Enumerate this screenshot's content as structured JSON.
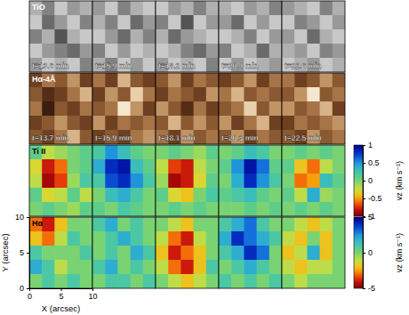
{
  "chart_data": {
    "type": "heatmap",
    "xlabel": "X (arcsec)",
    "ylabel": "Y (arcsec)",
    "xlim": [
      0,
      10
    ],
    "xticks": [
      0,
      5,
      10
    ],
    "ylim": [
      0,
      10
    ],
    "yticks": [
      0,
      5,
      10
    ],
    "rows": [
      {
        "label": "TiO",
        "color": "gray",
        "range": [
          0,
          1
        ],
        "times": [
          "t=13.6 min",
          "t=15.9 min",
          "t=18.2 min",
          "t=20.4 min",
          "t=22.6 min"
        ],
        "cells": [
          [
            [
              0.7,
              0.5,
              0.8,
              0.6,
              0.7
            ],
            [
              0.8,
              0.4,
              0.6,
              0.8,
              0.5
            ],
            [
              0.5,
              0.7,
              0.3,
              0.7,
              0.8
            ],
            [
              0.8,
              0.6,
              0.5,
              0.4,
              0.6
            ],
            [
              0.6,
              0.8,
              0.7,
              0.8,
              0.5
            ]
          ],
          [
            [
              0.6,
              0.8,
              0.5,
              0.7,
              0.8
            ],
            [
              0.7,
              0.5,
              0.8,
              0.4,
              0.6
            ],
            [
              0.8,
              0.6,
              0.4,
              0.7,
              0.5
            ],
            [
              0.5,
              0.8,
              0.6,
              0.8,
              0.7
            ],
            [
              0.7,
              0.5,
              0.8,
              0.6,
              0.8
            ]
          ],
          [
            [
              0.8,
              0.6,
              0.7,
              0.5,
              0.7
            ],
            [
              0.5,
              0.8,
              0.3,
              0.8,
              0.6
            ],
            [
              0.7,
              0.4,
              0.6,
              0.7,
              0.8
            ],
            [
              0.8,
              0.7,
              0.5,
              0.4,
              0.6
            ],
            [
              0.6,
              0.8,
              0.7,
              0.8,
              0.5
            ]
          ],
          [
            [
              0.7,
              0.8,
              0.6,
              0.7,
              0.5
            ],
            [
              0.6,
              0.4,
              0.8,
              0.6,
              0.8
            ],
            [
              0.8,
              0.7,
              0.5,
              0.8,
              0.6
            ],
            [
              0.5,
              0.8,
              0.7,
              0.4,
              0.7
            ],
            [
              0.8,
              0.6,
              0.8,
              0.7,
              0.6
            ]
          ],
          [
            [
              0.6,
              0.7,
              0.8,
              0.5,
              0.7
            ],
            [
              0.8,
              0.5,
              0.6,
              0.8,
              0.6
            ],
            [
              0.6,
              0.8,
              0.4,
              0.7,
              0.8
            ],
            [
              0.7,
              0.6,
              0.8,
              0.5,
              0.6
            ],
            [
              0.8,
              0.7,
              0.6,
              0.8,
              0.7
            ]
          ]
        ]
      },
      {
        "label": "Hα-4Å",
        "color": "brown",
        "range": [
          0,
          1
        ],
        "times": [
          "t=13.7 min",
          "t=15.9 min",
          "t=18.1 min",
          "t=20.3 min",
          "t=22.5 min"
        ],
        "cells": [
          [
            [
              0.3,
              0.5,
              0.4,
              0.6,
              0.3
            ],
            [
              0.4,
              0.2,
              0.3,
              0.5,
              0.7
            ],
            [
              0.5,
              0.1,
              0.4,
              0.3,
              0.5
            ],
            [
              0.3,
              0.4,
              0.6,
              0.4,
              0.3
            ],
            [
              0.4,
              0.3,
              0.5,
              0.7,
              0.4
            ]
          ],
          [
            [
              0.5,
              0.3,
              0.7,
              0.4,
              0.3
            ],
            [
              0.3,
              0.6,
              0.4,
              0.8,
              0.5
            ],
            [
              0.4,
              0.5,
              0.9,
              0.6,
              0.3
            ],
            [
              0.6,
              0.3,
              0.5,
              0.4,
              0.5
            ],
            [
              0.3,
              0.4,
              0.3,
              0.5,
              0.6
            ]
          ],
          [
            [
              0.4,
              0.6,
              0.3,
              0.5,
              0.4
            ],
            [
              0.3,
              0.5,
              0.4,
              0.3,
              0.6
            ],
            [
              0.6,
              0.4,
              0.2,
              0.5,
              0.3
            ],
            [
              0.4,
              0.7,
              0.4,
              0.6,
              0.4
            ],
            [
              0.5,
              0.3,
              0.6,
              0.4,
              0.5
            ]
          ],
          [
            [
              0.3,
              0.4,
              0.6,
              0.3,
              0.5
            ],
            [
              0.5,
              0.7,
              0.4,
              0.5,
              0.4
            ],
            [
              0.4,
              0.5,
              0.8,
              0.4,
              0.6
            ],
            [
              0.6,
              0.3,
              0.5,
              0.7,
              0.3
            ],
            [
              0.4,
              0.6,
              0.3,
              0.5,
              0.4
            ]
          ],
          [
            [
              0.5,
              0.3,
              0.4,
              0.6,
              0.4
            ],
            [
              0.4,
              0.6,
              0.9,
              0.4,
              0.5
            ],
            [
              0.6,
              0.4,
              0.5,
              0.7,
              0.3
            ],
            [
              0.3,
              0.5,
              0.4,
              0.5,
              0.6
            ],
            [
              0.4,
              0.3,
              0.6,
              0.4,
              0.5
            ]
          ]
        ]
      },
      {
        "label": "Ti II",
        "color": "jet",
        "range": [
          -1,
          1
        ],
        "colorbar": {
          "label": "vz (km s⁻¹)",
          "ticks": [
            -1,
            -0.5,
            0,
            0.5,
            1
          ]
        },
        "cells": [
          [
            [
              0.1,
              -0.2,
              -0.1,
              0,
              0.1
            ],
            [
              -0.3,
              -0.8,
              -0.6,
              0,
              0.1
            ],
            [
              -0.2,
              -0.9,
              -0.7,
              -0.1,
              0.2
            ],
            [
              0.1,
              -0.3,
              -0.2,
              0.1,
              -0.2
            ],
            [
              0,
              0.1,
              0,
              -0.1,
              0.1
            ]
          ],
          [
            [
              0.2,
              0.5,
              0.3,
              0.1,
              0
            ],
            [
              0.4,
              0.8,
              0.9,
              0.3,
              0.1
            ],
            [
              0.2,
              0.7,
              0.8,
              0.5,
              0.2
            ],
            [
              0,
              0.3,
              0.4,
              0.2,
              0
            ],
            [
              0.1,
              0,
              0.2,
              0.1,
              0
            ]
          ],
          [
            [
              0,
              0.1,
              0,
              -0.1,
              0.1
            ],
            [
              -0.2,
              -0.7,
              -0.8,
              -0.2,
              0
            ],
            [
              -0.1,
              -0.9,
              -0.8,
              -0.3,
              0.1
            ],
            [
              0.1,
              -0.3,
              -0.4,
              0,
              0.2
            ],
            [
              0,
              0.1,
              0,
              0.1,
              0
            ]
          ],
          [
            [
              0,
              0.1,
              0.3,
              0.2,
              0
            ],
            [
              0.1,
              0.5,
              0.9,
              0.6,
              0.1
            ],
            [
              0,
              0.4,
              0.8,
              0.5,
              0.2
            ],
            [
              0.1,
              0.2,
              0.3,
              0.1,
              0
            ],
            [
              0,
              0,
              0.1,
              0,
              0.1
            ]
          ],
          [
            [
              0,
              0.1,
              0,
              0.1,
              0
            ],
            [
              0.1,
              -0.4,
              -0.6,
              -0.2,
              0
            ],
            [
              0,
              -0.6,
              -0.5,
              0.3,
              0.1
            ],
            [
              0.1,
              -0.2,
              0.4,
              -0.1,
              0
            ],
            [
              0,
              0.1,
              0,
              0.1,
              0
            ]
          ]
        ]
      },
      {
        "label": "Hα",
        "color": "jet",
        "range": [
          -5,
          5
        ],
        "colorbar": {
          "label": "vz (km s⁻¹)",
          "ticks": [
            -5,
            0,
            5
          ]
        },
        "cells": [
          [
            [
              -3,
              -4,
              -2,
              0,
              0
            ],
            [
              -2,
              -3,
              -1,
              1,
              0
            ],
            [
              1,
              0,
              0,
              0,
              1
            ],
            [
              2,
              1,
              -1,
              0,
              0
            ],
            [
              0,
              1,
              0,
              1,
              0
            ]
          ],
          [
            [
              1,
              2,
              0,
              1,
              0
            ],
            [
              0,
              1,
              2,
              1,
              0
            ],
            [
              0,
              1,
              0,
              2,
              1
            ],
            [
              1,
              2,
              0,
              1,
              0
            ],
            [
              0,
              1,
              1,
              0,
              1
            ]
          ],
          [
            [
              0,
              -1,
              -2,
              0,
              0
            ],
            [
              -1,
              -3,
              -4,
              -1,
              0
            ],
            [
              -2,
              -4,
              -3,
              -2,
              0
            ],
            [
              -1,
              -3,
              -4,
              -2,
              1
            ],
            [
              0,
              -1,
              -2,
              -1,
              0
            ]
          ],
          [
            [
              1,
              2,
              3,
              1,
              0
            ],
            [
              2,
              4,
              3,
              2,
              1
            ],
            [
              1,
              2,
              4,
              3,
              0
            ],
            [
              0,
              1,
              2,
              1,
              0
            ],
            [
              1,
              0,
              1,
              0,
              1
            ]
          ],
          [
            [
              0,
              -1,
              -2,
              -1,
              0
            ],
            [
              -1,
              -2,
              0,
              -2,
              0
            ],
            [
              -2,
              -1,
              2,
              -2,
              0
            ],
            [
              -1,
              -2,
              -1,
              -1,
              0
            ],
            [
              0,
              -1,
              0,
              0,
              0
            ]
          ]
        ]
      }
    ]
  }
}
